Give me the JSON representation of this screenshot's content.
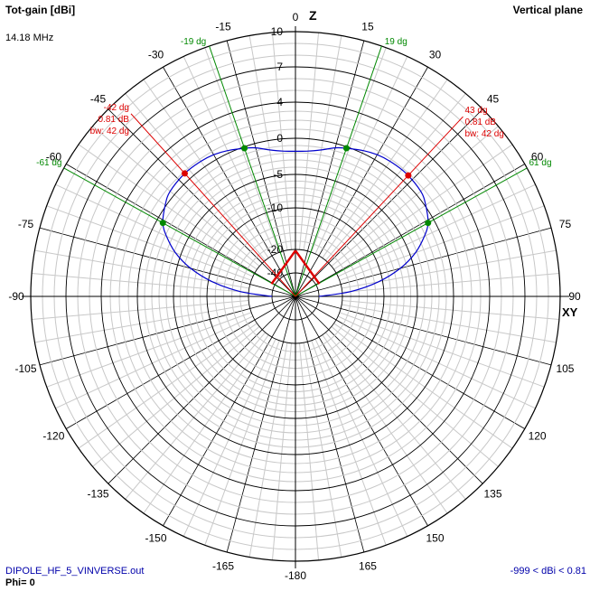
{
  "header": {
    "title": "Tot-gain [dBi]",
    "frequency": "14.18 MHz",
    "plane": "Vertical plane"
  },
  "footer": {
    "filename": "DIPOLE_HF_5_VINVERSE.out",
    "phi": "Phi= 0",
    "range": "-999 < dBi < 0.81"
  },
  "colors": {
    "pattern": "#0000cc",
    "beam_width": "#008800",
    "max_gain": "#dd0000",
    "antenna": "#dd0000",
    "grid": "#c8c8c8",
    "axis": "#000000"
  },
  "chart_data": {
    "type": "polar",
    "axis_labels": {
      "zenith": "Z",
      "horizon": "XY"
    },
    "angle_ticks": [
      {
        "deg": 0,
        "label": "0"
      },
      {
        "deg": 15,
        "label": "15"
      },
      {
        "deg": 30,
        "label": "30"
      },
      {
        "deg": 45,
        "label": "45"
      },
      {
        "deg": 60,
        "label": "60"
      },
      {
        "deg": 75,
        "label": "75"
      },
      {
        "deg": 90,
        "label": "90"
      },
      {
        "deg": 105,
        "label": "105"
      },
      {
        "deg": 120,
        "label": "120"
      },
      {
        "deg": 135,
        "label": "135"
      },
      {
        "deg": 150,
        "label": "150"
      },
      {
        "deg": 165,
        "label": "165"
      },
      {
        "deg": 180,
        "label": "-180"
      },
      {
        "deg": -15,
        "label": "-15"
      },
      {
        "deg": -30,
        "label": "-30"
      },
      {
        "deg": -45,
        "label": "-45"
      },
      {
        "deg": -60,
        "label": "-60"
      },
      {
        "deg": -75,
        "label": "-75"
      },
      {
        "deg": -90,
        "label": "-90"
      },
      {
        "deg": -105,
        "label": "-105"
      },
      {
        "deg": -120,
        "label": "-120"
      },
      {
        "deg": -135,
        "label": "-135"
      },
      {
        "deg": -150,
        "label": "-150"
      },
      {
        "deg": -165,
        "label": "-165"
      }
    ],
    "gain_rings": [
      {
        "db": 10,
        "label": "10"
      },
      {
        "db": 7,
        "label": "7"
      },
      {
        "db": 4,
        "label": "4"
      },
      {
        "db": 0,
        "label": "0"
      },
      {
        "db": -5,
        "label": "-5"
      },
      {
        "db": -10,
        "label": "-10"
      },
      {
        "db": -20,
        "label": "-20"
      },
      {
        "db": -40,
        "label": "-40"
      }
    ],
    "pattern": [
      {
        "deg": 0,
        "db": -1.8
      },
      {
        "deg": 5,
        "db": -1.7
      },
      {
        "deg": 10,
        "db": -1.3
      },
      {
        "deg": 15,
        "db": -0.6
      },
      {
        "deg": 19,
        "db": -0.2
      },
      {
        "deg": 25,
        "db": 0.3
      },
      {
        "deg": 30,
        "db": 0.6
      },
      {
        "deg": 35,
        "db": 0.75
      },
      {
        "deg": 42,
        "db": 0.81
      },
      {
        "deg": 50,
        "db": 0.6
      },
      {
        "deg": 55,
        "db": 0.1
      },
      {
        "deg": 61,
        "db": -0.9
      },
      {
        "deg": 65,
        "db": -2.2
      },
      {
        "deg": 70,
        "db": -4.2
      },
      {
        "deg": 75,
        "db": -7
      },
      {
        "deg": 80,
        "db": -11
      },
      {
        "deg": 85,
        "db": -18
      },
      {
        "deg": 90,
        "db": -40
      }
    ],
    "max_gain_markers": [
      {
        "deg": -42,
        "db": 0.81,
        "angle_label": "-42 dg",
        "gain_label": "0.81 dB",
        "bw_label": "bw: 42 dg"
      },
      {
        "deg": 43,
        "db": 0.81,
        "angle_label": "43 dg",
        "gain_label": "0.81 dB",
        "bw_label": "bw: 42 dg"
      }
    ],
    "beam_width_markers": [
      {
        "deg": -19,
        "label": "-19 dg"
      },
      {
        "deg": 19,
        "label": "19 dg"
      },
      {
        "deg": -61,
        "label": "-61 dg"
      },
      {
        "deg": 61,
        "label": "61 dg"
      }
    ],
    "antenna_db": {
      "apex": -21,
      "legs": [
        {
          "deg": -62.5,
          "db": -37
        },
        {
          "deg": 62.5,
          "db": -37
        }
      ]
    }
  }
}
